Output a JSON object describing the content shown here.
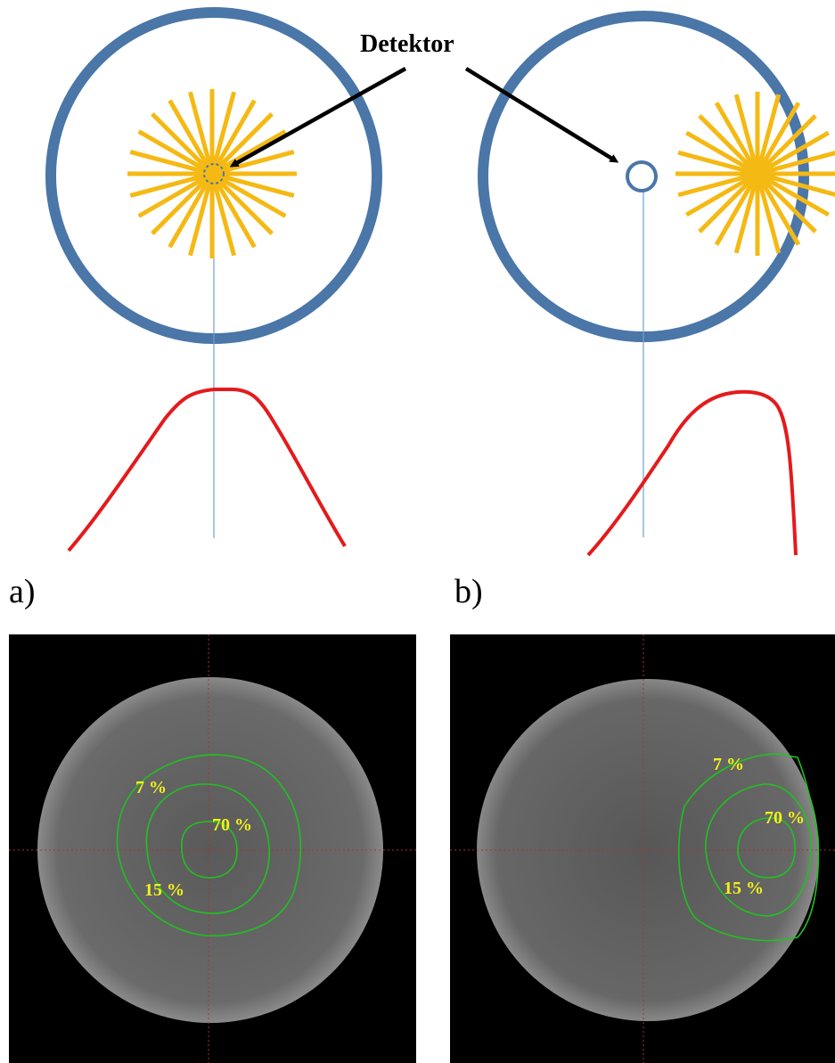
{
  "annotation": {
    "detector_label": "Detektor"
  },
  "panels": [
    {
      "letter": "a)"
    },
    {
      "letter": "b)"
    }
  ],
  "isodose_labels": {
    "a": [
      "7 %",
      "70 %",
      "15 %"
    ],
    "b": [
      "7 %",
      "70 %",
      "15 %"
    ]
  },
  "colors": {
    "phantom_ring": "#4a76a8",
    "source_rays": "#f5b914",
    "profile_curve": "#e41a1c",
    "axis_line": "#6ea0d0",
    "isodose_lines": "#1fc21f",
    "isodose_text": "#f2f21a",
    "crosshair": "#b03030",
    "ct_background": "#000000",
    "arrow": "#000000"
  },
  "icons": {
    "source": "radial-star-icon",
    "detector": "small-ring-icon",
    "arrow": "arrow-icon"
  }
}
